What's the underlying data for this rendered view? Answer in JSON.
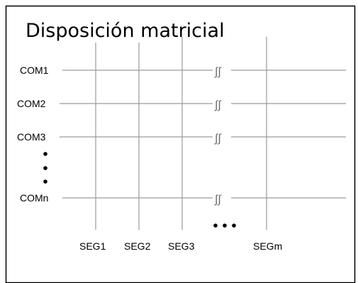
{
  "title": "Disposición matricial",
  "com_labels": [
    "COM1",
    "COM2",
    "COM3",
    "COMn"
  ],
  "seg_labels": [
    "SEG1",
    "SEG2",
    "SEG3",
    "SEGm"
  ],
  "break_glyph": "∫∫",
  "colors": {
    "background": "#ffffff",
    "border": "#000000",
    "grid_line": "#9a9a9a",
    "text": "#000000"
  }
}
